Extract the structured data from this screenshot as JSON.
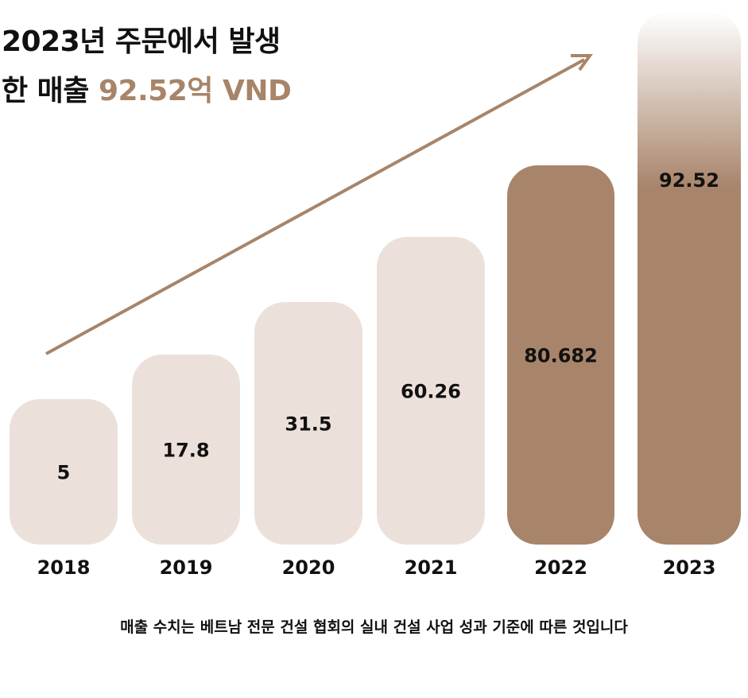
{
  "title": {
    "line1": "2023년 주문에서 발생",
    "line2_prefix": "한 매출 ",
    "line2_accent": "92.52억 VND"
  },
  "footnote": "매출 수치는 베트남 전문 건설 협회의 실내 건설 사업 성과 기준에 따른 것입니다",
  "colors": {
    "light": "#ece1da",
    "dark": "#a8846a",
    "accent": "#a88468",
    "text": "#111111"
  },
  "chart_data": {
    "type": "bar",
    "categories": [
      "2018",
      "2019",
      "2020",
      "2021",
      "2022",
      "2023"
    ],
    "values": [
      5,
      17.8,
      31.5,
      60.26,
      80.682,
      92.52
    ],
    "value_labels": [
      "5",
      "17.8",
      "31.5",
      "60.26",
      "80.682",
      "92.52"
    ],
    "highlight": [
      false,
      false,
      false,
      false,
      true,
      true
    ],
    "trend_arrow": "up",
    "grid": false
  }
}
